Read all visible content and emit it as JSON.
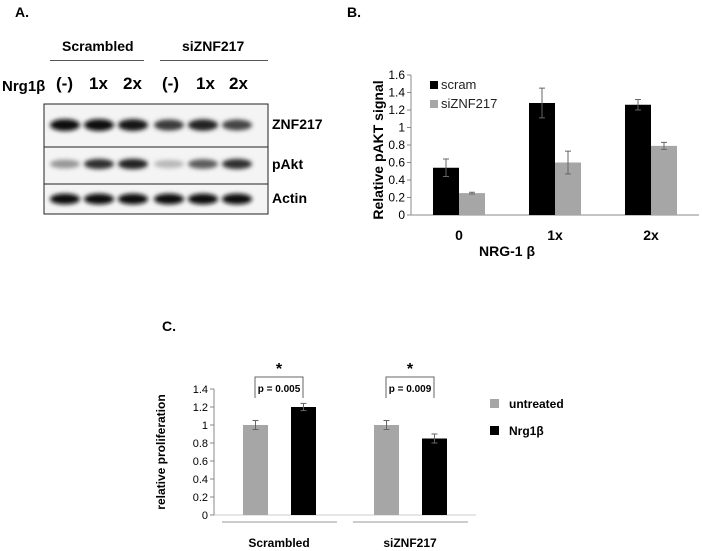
{
  "panels": {
    "a": {
      "letter": "A.",
      "groups": [
        "Scrambled",
        "siZNF217"
      ],
      "treatment_label": "Nrg1β",
      "lanes": [
        "(-)",
        "1x",
        "2x",
        "(-)",
        "1x",
        "2x"
      ],
      "rows": [
        "ZNF217",
        "pAkt",
        "Actin"
      ],
      "band_intensity": {
        "ZNF217": [
          0.95,
          0.95,
          0.92,
          0.75,
          0.85,
          0.7
        ],
        "pAkt": [
          0.35,
          0.8,
          0.85,
          0.2,
          0.6,
          0.8
        ],
        "Actin": [
          0.95,
          0.95,
          0.95,
          0.95,
          0.95,
          0.95
        ]
      }
    },
    "b": {
      "letter": "B."
    },
    "c": {
      "letter": "C."
    }
  },
  "chart_data": [
    {
      "type": "bar",
      "panel": "B",
      "categories": [
        "0",
        "1x",
        "2x"
      ],
      "xlabel": "NRG-1 β",
      "ylabel": "Relative pAKT signal",
      "ylim": [
        0,
        1.6
      ],
      "yticks": [
        "0",
        "0.2",
        "0.4",
        "0.6",
        "0.8",
        "1",
        "1.2",
        "1.4",
        "1.6"
      ],
      "series": [
        {
          "name": "scram",
          "color": "#000000",
          "values": [
            0.54,
            1.28,
            1.26
          ],
          "errors": [
            0.1,
            0.17,
            0.06
          ]
        },
        {
          "name": "siZNF217",
          "color": "#a6a6a6",
          "values": [
            0.25,
            0.6,
            0.79
          ],
          "errors": [
            0.01,
            0.13,
            0.04
          ]
        }
      ],
      "legend": "top-left"
    },
    {
      "type": "bar",
      "panel": "C",
      "categories": [
        "Scrambled",
        "siZNF217"
      ],
      "ylabel": "relative proliferation",
      "ylim": [
        0,
        1.4
      ],
      "yticks": [
        "0",
        "0.2",
        "0.4",
        "0.6",
        "0.8",
        "1",
        "1.2",
        "1.4"
      ],
      "series": [
        {
          "name": "untreated",
          "color": "#a6a6a6",
          "values": [
            1.0,
            1.0
          ],
          "errors": [
            0.05,
            0.05
          ]
        },
        {
          "name": "Nrg1β",
          "color": "#000000",
          "values": [
            1.2,
            0.85
          ],
          "errors": [
            0.04,
            0.05
          ]
        }
      ],
      "annotations": [
        {
          "group": "Scrambled",
          "star": "*",
          "p": "p = 0.005"
        },
        {
          "group": "siZNF217",
          "star": "*",
          "p": "p = 0.009"
        }
      ],
      "legend": "right"
    }
  ]
}
